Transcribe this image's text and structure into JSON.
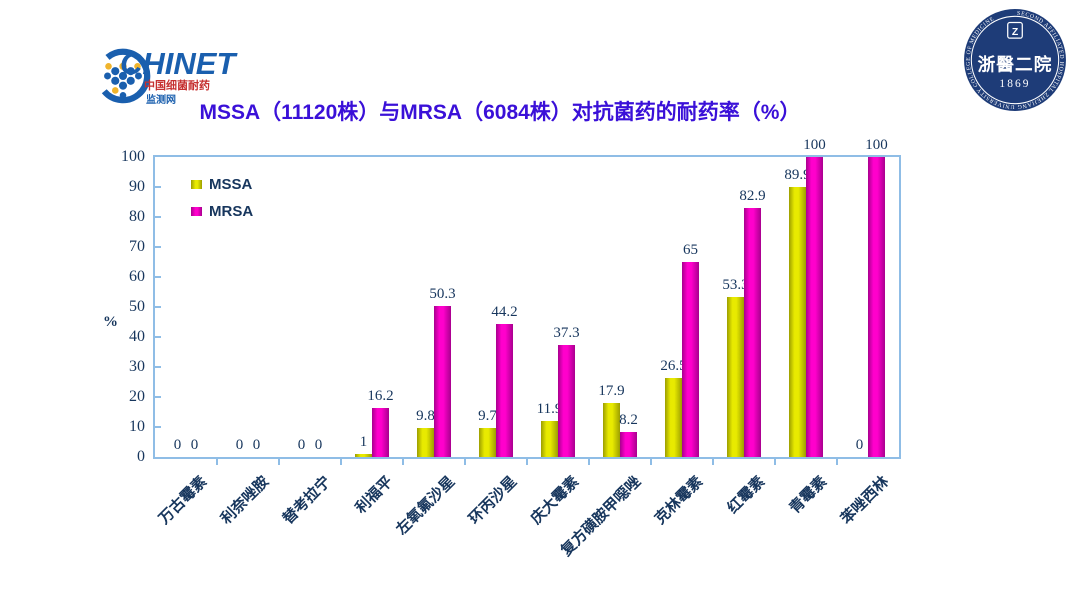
{
  "title": "MSSA（11120株）与MRSA（6084株）对抗菌药的耐药率（%）",
  "logos": {
    "chinet": {
      "wordmark": "CHINET",
      "tagline_red": "中国细菌耐药",
      "tagline_blue": "监测网"
    },
    "hospital": {
      "name": "浙醫二院",
      "year": "1869",
      "shield_letter": "Z",
      "ring_text": "SECOND AFFILIATED HOSPITAL  ZHEJIANG UNIVERSITY COLLEGE OF MEDICINE"
    }
  },
  "chart_data": {
    "type": "bar",
    "title": "MSSA（11120株）与MRSA（6084株）对抗菌药的耐药率（%）",
    "xlabel": "",
    "ylabel": "%",
    "ylim": [
      0,
      100
    ],
    "yticks": [
      0,
      10,
      20,
      30,
      40,
      50,
      60,
      70,
      80,
      90,
      100
    ],
    "grid": false,
    "legend_position": "top-left-inside",
    "categories": [
      "万古霉素",
      "利奈唑胺",
      "替考拉宁",
      "利福平",
      "左氧氟沙星",
      "环丙沙星",
      "庆大霉素",
      "复方磺胺甲噁唑",
      "克林霉素",
      "红霉素",
      "青霉素",
      "苯唑西林"
    ],
    "series": [
      {
        "name": "MSSA",
        "color": "#e8ea00",
        "color_dark": "#9c9e00",
        "values": [
          0,
          0,
          0,
          1,
          9.8,
          9.7,
          11.9,
          17.9,
          26.5,
          53.3,
          89.9,
          0
        ]
      },
      {
        "name": "MRSA",
        "color": "#ff00cc",
        "color_dark": "#a8008e",
        "values": [
          0,
          0,
          0,
          16.2,
          50.3,
          44.2,
          37.3,
          8.2,
          65,
          82.9,
          100,
          100
        ]
      }
    ],
    "colors": {
      "axis_line": "#8fbde6",
      "text": "#17365d",
      "title": "#3a10d8"
    }
  }
}
